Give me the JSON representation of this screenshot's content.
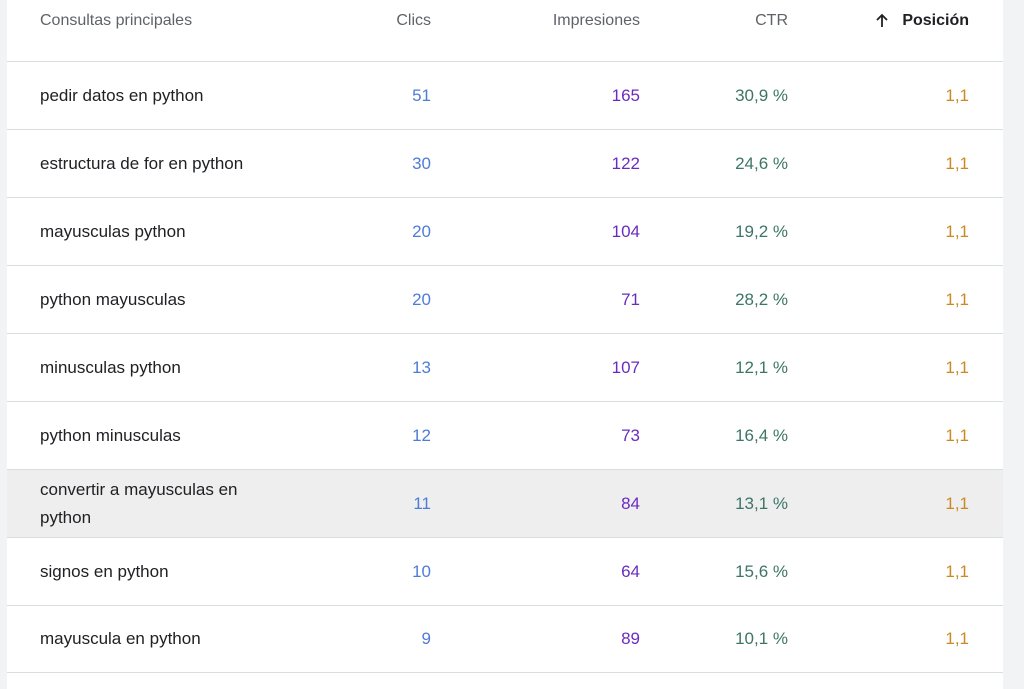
{
  "columns": {
    "query": "Consultas principales",
    "clicks": "Clics",
    "impressions": "Impresiones",
    "ctr": "CTR",
    "position": "Posición"
  },
  "sort": {
    "column": "position",
    "direction": "ascending",
    "icon": "arrow-up-icon"
  },
  "colors": {
    "clicks": "#4f7bd9",
    "impressions": "#6a2bbf",
    "ctr": "#3d7566",
    "position": "#c98a24"
  },
  "rows": [
    {
      "query": "pedir datos en python",
      "clicks": "51",
      "impressions": "165",
      "ctr": "30,9 %",
      "position": "1,1"
    },
    {
      "query": "estructura de for en python",
      "clicks": "30",
      "impressions": "122",
      "ctr": "24,6 %",
      "position": "1,1"
    },
    {
      "query": "mayusculas python",
      "clicks": "20",
      "impressions": "104",
      "ctr": "19,2 %",
      "position": "1,1"
    },
    {
      "query": "python mayusculas",
      "clicks": "20",
      "impressions": "71",
      "ctr": "28,2 %",
      "position": "1,1"
    },
    {
      "query": "minusculas python",
      "clicks": "13",
      "impressions": "107",
      "ctr": "12,1 %",
      "position": "1,1"
    },
    {
      "query": "python minusculas",
      "clicks": "12",
      "impressions": "73",
      "ctr": "16,4 %",
      "position": "1,1"
    },
    {
      "query": "convertir a mayusculas en python",
      "clicks": "11",
      "impressions": "84",
      "ctr": "13,1 %",
      "position": "1,1"
    },
    {
      "query": "signos en python",
      "clicks": "10",
      "impressions": "64",
      "ctr": "15,6 %",
      "position": "1,1"
    },
    {
      "query": "mayuscula en python",
      "clicks": "9",
      "impressions": "89",
      "ctr": "10,1 %",
      "position": "1,1"
    }
  ]
}
